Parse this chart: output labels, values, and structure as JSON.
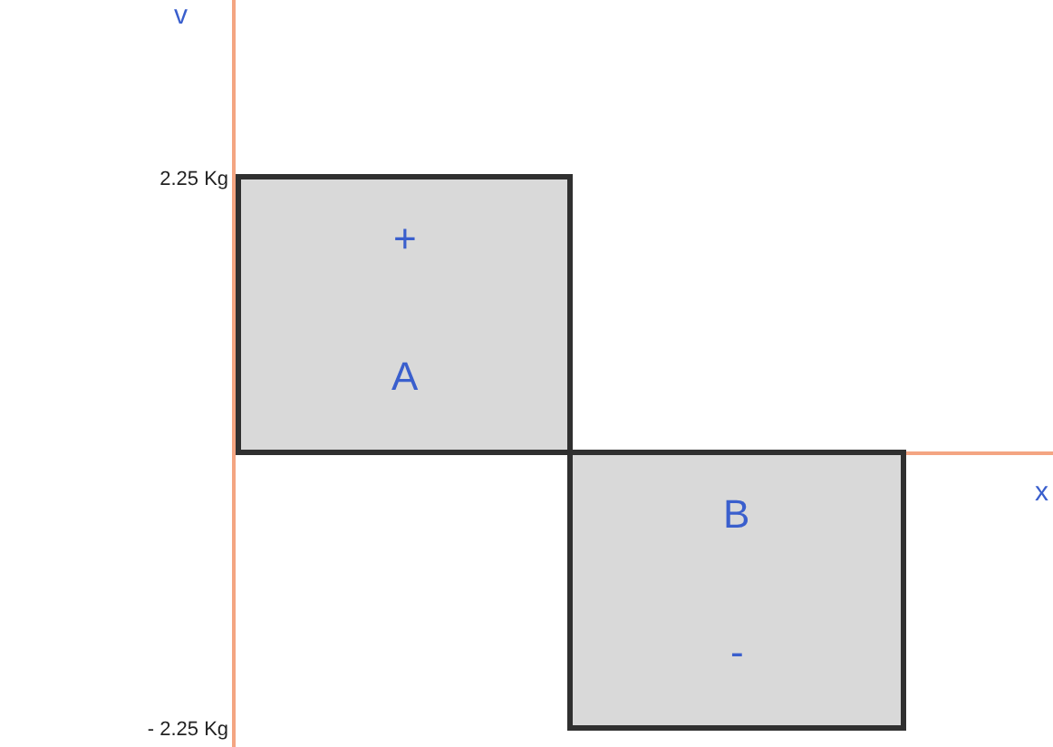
{
  "chart_data": {
    "type": "bar",
    "categories": [
      null,
      null
    ],
    "values": [
      2.25,
      -2.25
    ],
    "color": "#d9d9d9",
    "ylim": [
      -2.4,
      3.7
    ],
    "yticks": [
      {
        "value": 2.25,
        "label": "2.25 Kg"
      },
      {
        "value": -2.25,
        "label": "- 2.25 Kg"
      }
    ],
    "xlabel": "x",
    "ylabel": "v",
    "legend": false,
    "annotations": [
      "+",
      "A",
      "B",
      "-"
    ]
  }
}
